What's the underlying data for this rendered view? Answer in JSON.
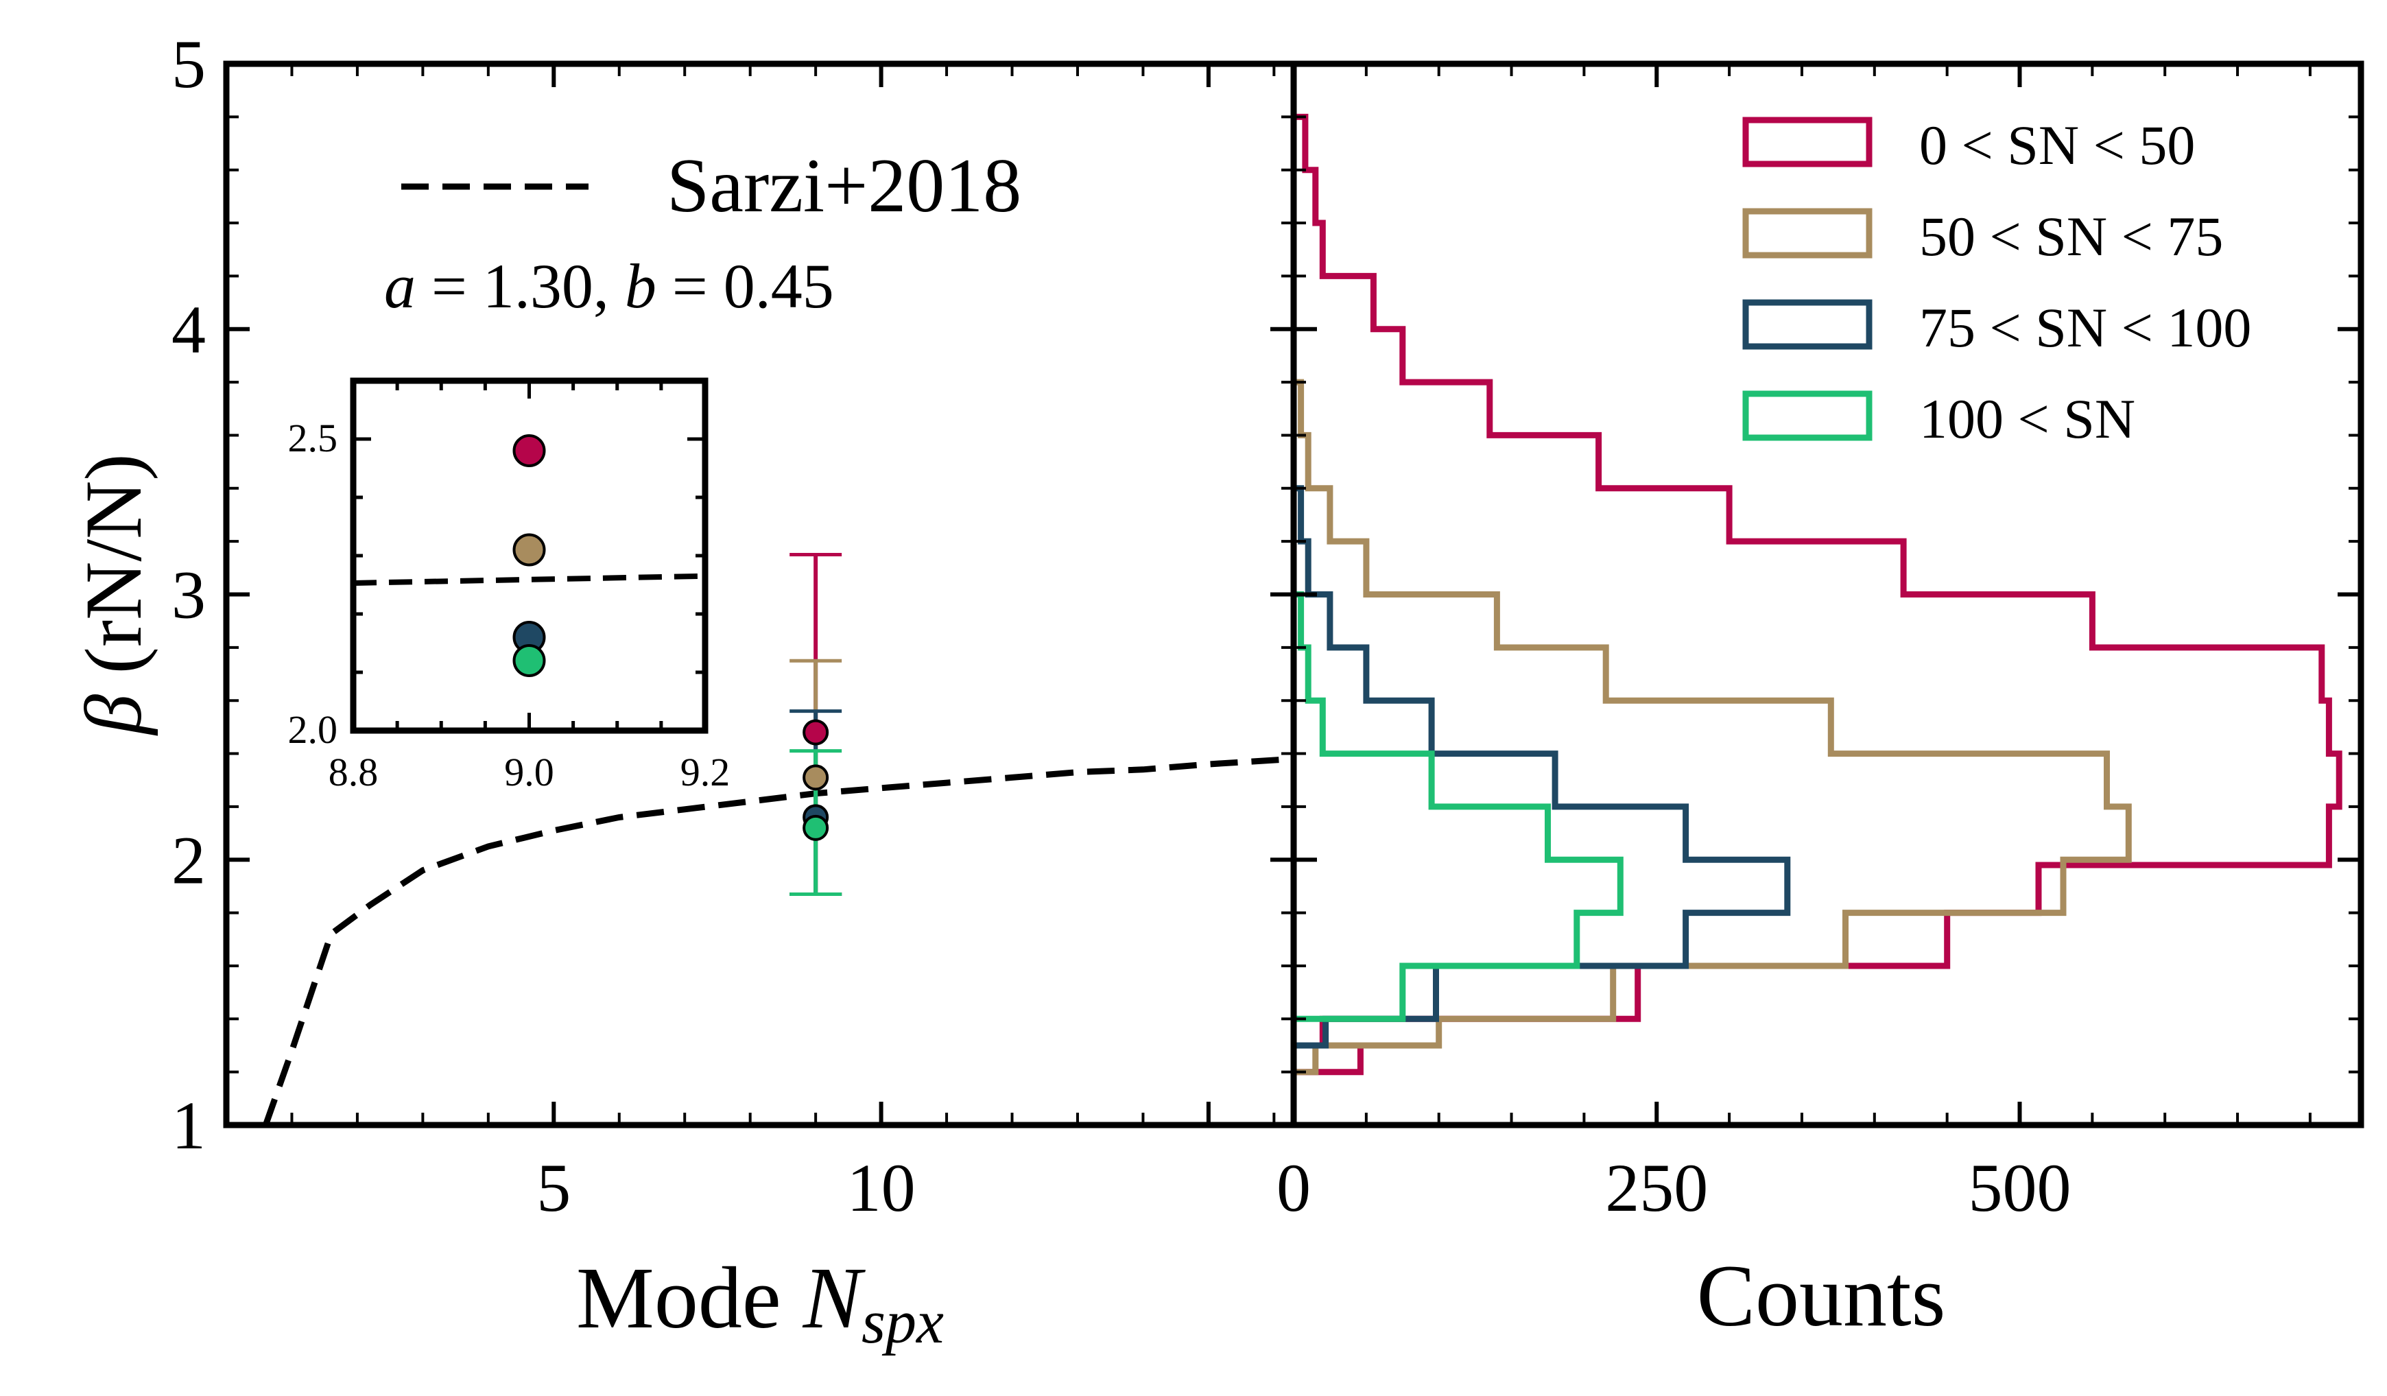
{
  "colors": {
    "sn_0_50": "#b5054a",
    "sn_50_75": "#a88c5e",
    "sn_75_100": "#1f4863",
    "sn_100": "#1fbf73",
    "fit": "#000000"
  },
  "left_panel": {
    "xlabel_prefix": "Mode ",
    "xlabel_var": "N",
    "xlabel_sub": "spx",
    "ylabel_symbol": "β",
    "ylabel_unit": " (rN/N)",
    "fit_legend_label": "Sarzi+2018",
    "fit_params": {
      "a_sym": "a",
      "a_text": " = 1.30, ",
      "b_sym": "b",
      "b_text": " = 0.45"
    }
  },
  "right_panel": {
    "xlabel": "Counts"
  },
  "legend": [
    {
      "label": "0 < SN < 50",
      "color_key": "sn_0_50"
    },
    {
      "label": "50 < SN < 75",
      "color_key": "sn_50_75"
    },
    {
      "label": "75 < SN < 100",
      "color_key": "sn_75_100"
    },
    {
      "label": "100 < SN",
      "color_key": "sn_100"
    }
  ],
  "chart_data": [
    {
      "type": "scatter",
      "panel": "left",
      "xlabel": "Mode N_spx",
      "ylabel": "β (rN/N)",
      "xlim": [
        0,
        16.3
      ],
      "ylim": [
        1,
        5
      ],
      "x_ticks": [
        5,
        10
      ],
      "y_ticks": [
        1,
        2,
        3,
        4,
        5
      ],
      "fit_curve": {
        "name": "Sarzi+2018",
        "style": "dashed",
        "a": 1.3,
        "b": 0.45,
        "x": [
          0.6,
          1.0,
          1.6,
          2.2,
          3.0,
          4.0,
          5.0,
          6.0,
          7.0,
          8.0,
          9.0,
          10.0,
          11.0,
          12.0,
          13.0,
          14.0,
          15.0,
          16.3
        ],
        "y": [
          1.0,
          1.28,
          1.72,
          1.83,
          1.96,
          2.05,
          2.11,
          2.16,
          2.19,
          2.22,
          2.25,
          2.27,
          2.29,
          2.31,
          2.33,
          2.34,
          2.36,
          2.38
        ]
      },
      "series": [
        {
          "name": "0 < SN < 50",
          "x": 9.0,
          "y": 2.48,
          "yerr_low": 1.87,
          "yerr_high": 3.15
        },
        {
          "name": "50 < SN < 75",
          "x": 9.0,
          "y": 2.31,
          "yerr_low": 1.87,
          "yerr_high": 2.75
        },
        {
          "name": "75 < SN < 100",
          "x": 9.0,
          "y": 2.16,
          "yerr_low": 1.87,
          "yerr_high": 2.56
        },
        {
          "name": "100 < SN",
          "x": 9.0,
          "y": 2.12,
          "yerr_low": 1.87,
          "yerr_high": 2.41
        }
      ]
    },
    {
      "type": "scatter",
      "panel": "inset",
      "xlim": [
        8.8,
        9.2
      ],
      "ylim": [
        2.0,
        2.6
      ],
      "x_ticks": [
        8.8,
        9.0,
        9.2
      ],
      "x_tick_labels": [
        "8.8",
        "9.0",
        "9.2"
      ],
      "y_ticks": [
        2.0,
        2.5
      ],
      "y_tick_labels": [
        "2.0",
        "2.5"
      ],
      "fit_line": {
        "x": [
          8.8,
          9.2
        ],
        "y": [
          2.253,
          2.265
        ]
      },
      "points": [
        {
          "name": "0 < SN < 50",
          "x": 9.0,
          "y": 2.48
        },
        {
          "name": "50 < SN < 75",
          "x": 9.0,
          "y": 2.31
        },
        {
          "name": "75 < SN < 100",
          "x": 9.0,
          "y": 2.16
        },
        {
          "name": "100 < SN",
          "x": 9.0,
          "y": 2.12
        }
      ]
    },
    {
      "type": "histogram",
      "panel": "right",
      "orientation": "horizontal",
      "xlabel": "Counts",
      "xlim": [
        0,
        735
      ],
      "ylim": [
        1,
        5
      ],
      "x_ticks": [
        0,
        250,
        500
      ],
      "legend_position": "top-right",
      "series": [
        {
          "name": "0 < SN < 50",
          "steps": [
            [
              1.2,
              1.3,
              46
            ],
            [
              1.3,
              1.4,
              20
            ],
            [
              1.4,
              1.6,
              237
            ],
            [
              1.6,
              1.8,
              450
            ],
            [
              1.8,
              1.98,
              513
            ],
            [
              1.98,
              2.2,
              713
            ],
            [
              2.2,
              2.4,
              720
            ],
            [
              2.4,
              2.6,
              713
            ],
            [
              2.6,
              2.8,
              708
            ],
            [
              2.8,
              3.0,
              550
            ],
            [
              3.0,
              3.2,
              420
            ],
            [
              3.2,
              3.4,
              300
            ],
            [
              3.4,
              3.6,
              210
            ],
            [
              3.6,
              3.8,
              135
            ],
            [
              3.8,
              4.0,
              75
            ],
            [
              4.0,
              4.2,
              55
            ],
            [
              4.2,
              4.4,
              20
            ],
            [
              4.4,
              4.6,
              15
            ],
            [
              4.6,
              4.8,
              8
            ]
          ]
        },
        {
          "name": "50 < SN < 75",
          "steps": [
            [
              1.2,
              1.3,
              15
            ],
            [
              1.3,
              1.4,
              100
            ],
            [
              1.4,
              1.6,
              220
            ],
            [
              1.6,
              1.8,
              380
            ],
            [
              1.8,
              2.0,
              530
            ],
            [
              2.0,
              2.2,
              575
            ],
            [
              2.2,
              2.4,
              560
            ],
            [
              2.4,
              2.6,
              370
            ],
            [
              2.6,
              2.8,
              215
            ],
            [
              2.8,
              3.0,
              140
            ],
            [
              3.0,
              3.2,
              50
            ],
            [
              3.2,
              3.4,
              25
            ],
            [
              3.4,
              3.6,
              10
            ],
            [
              3.6,
              3.8,
              5
            ]
          ]
        },
        {
          "name": "75 < SN < 100",
          "steps": [
            [
              1.3,
              1.4,
              22
            ],
            [
              1.4,
              1.6,
              98
            ],
            [
              1.6,
              1.8,
              270
            ],
            [
              1.8,
              2.0,
              340
            ],
            [
              2.0,
              2.2,
              270
            ],
            [
              2.2,
              2.4,
              180
            ],
            [
              2.4,
              2.6,
              95
            ],
            [
              2.6,
              2.8,
              50
            ],
            [
              2.8,
              3.0,
              25
            ],
            [
              3.0,
              3.2,
              10
            ],
            [
              3.2,
              3.4,
              5
            ]
          ]
        },
        {
          "name": "100 < SN",
          "steps": [
            [
              1.4,
              1.6,
              75
            ],
            [
              1.6,
              1.8,
              195
            ],
            [
              1.8,
              2.0,
              225
            ],
            [
              2.0,
              2.2,
              175
            ],
            [
              2.2,
              2.4,
              95
            ],
            [
              2.4,
              2.6,
              20
            ],
            [
              2.6,
              2.8,
              10
            ],
            [
              2.8,
              3.0,
              5
            ]
          ]
        }
      ]
    }
  ]
}
